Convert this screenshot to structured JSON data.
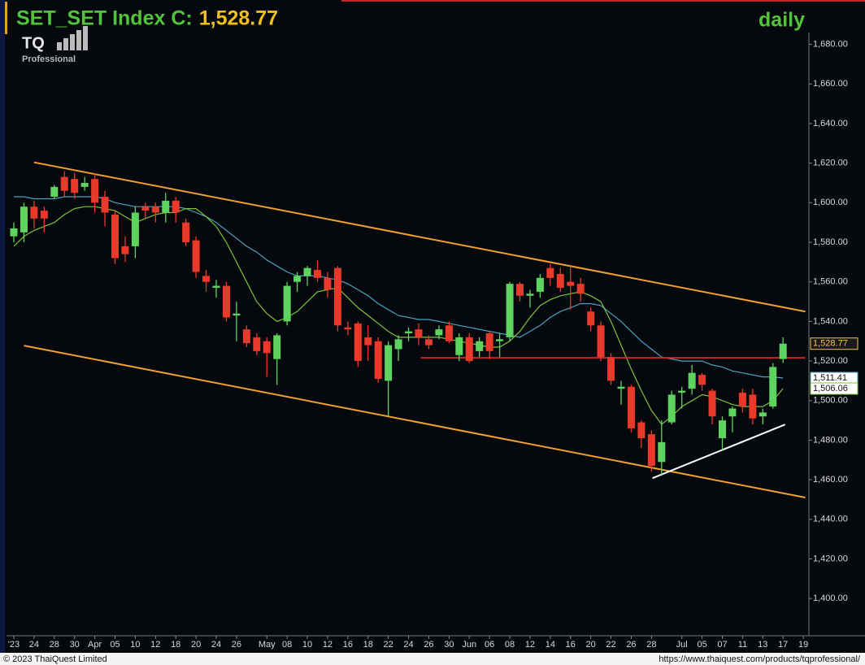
{
  "chart_data": {
    "type": "candlestick",
    "title": "SET_SET Index C:",
    "title_value": "1,528.77",
    "period": "daily",
    "logo": {
      "text": "TQ",
      "subtitle": "Professional"
    },
    "footer": {
      "copyright": "© 2023 ThaiQuest Limited",
      "url": "https://www.thaiquest.com/products/tqprofessional/"
    },
    "grid": false,
    "ylim": [
      1382,
      1686
    ],
    "yticks": [
      {
        "value": 1400,
        "label": "1,400.00"
      },
      {
        "value": 1420,
        "label": "1,420.00"
      },
      {
        "value": 1440,
        "label": "1,440.00"
      },
      {
        "value": 1460,
        "label": "1,460.00"
      },
      {
        "value": 1480,
        "label": "1,480.00"
      },
      {
        "value": 1500,
        "label": "1,500.00"
      },
      {
        "value": 1520,
        "label": "1,520.00"
      },
      {
        "value": 1540,
        "label": "1,540.00"
      },
      {
        "value": 1560,
        "label": "1,560.00"
      },
      {
        "value": 1580,
        "label": "1,580.00"
      },
      {
        "value": 1600,
        "label": "1,600.00"
      },
      {
        "value": 1620,
        "label": "1,620.00"
      },
      {
        "value": 1640,
        "label": "1,640.00"
      },
      {
        "value": 1660,
        "label": "1,660.00"
      },
      {
        "value": 1680,
        "label": "1,680.00"
      }
    ],
    "categories": [
      "'23",
      null,
      "24",
      null,
      "28",
      null,
      "30",
      null,
      "Apr",
      null,
      "05",
      null,
      "10",
      null,
      "12",
      null,
      "18",
      null,
      "20",
      null,
      "24",
      null,
      "26",
      null,
      null,
      "May",
      null,
      "08",
      null,
      "10",
      null,
      "12",
      null,
      "16",
      null,
      "18",
      null,
      "22",
      null,
      "24",
      null,
      "26",
      null,
      "30",
      null,
      "Jun",
      null,
      "06",
      null,
      "08",
      null,
      "12",
      null,
      "14",
      null,
      "16",
      null,
      "20",
      null,
      "22",
      null,
      "26",
      null,
      "28",
      null,
      null,
      "Jul",
      null,
      "05",
      null,
      "07",
      null,
      "11",
      null,
      "13",
      null,
      "17",
      null,
      "19"
    ],
    "candles": {
      "up_color": "#5fd35f",
      "down_color": "#e8392a",
      "open": [
        1583,
        1585,
        1598,
        1596,
        1603,
        1613,
        1612,
        1608,
        1612,
        1603,
        1594,
        1578,
        1578,
        1598,
        1598,
        1595,
        1601,
        1590,
        1581,
        1563,
        1557,
        1558,
        1543,
        1536,
        1532,
        1530,
        1521,
        1540,
        1560,
        1563,
        1566,
        1562,
        1567,
        1537,
        1539,
        1532,
        1530,
        1510,
        1526,
        1534,
        1536,
        1531,
        1533,
        1538,
        1523,
        1532,
        1525,
        1534,
        1530,
        1532,
        1559,
        1553,
        1555,
        1567,
        1564,
        1560,
        1559,
        1545,
        1538,
        1522,
        1506,
        1507,
        1489,
        1483,
        1469,
        1489,
        1504,
        1506,
        1513,
        1505,
        1481,
        1492,
        1504,
        1503,
        1492,
        1497,
        1521,
        null,
        null
      ],
      "high": [
        1590,
        1600,
        1601,
        1598,
        1609,
        1616,
        1615,
        1613,
        1615,
        1606,
        1596,
        1583,
        1598,
        1600,
        1600,
        1605,
        1603,
        1592,
        1583,
        1566,
        1561,
        1560,
        1550,
        1538,
        1534,
        1532,
        1534,
        1560,
        1565,
        1568,
        1571,
        1565,
        1568,
        1540,
        1540,
        1538,
        1532,
        1530,
        1533,
        1537,
        1539,
        1533,
        1538,
        1540,
        1534,
        1534,
        1532,
        1535,
        1534,
        1560,
        1560,
        1556,
        1564,
        1569,
        1567,
        1568,
        1562,
        1547,
        1540,
        1524,
        1510,
        1508,
        1490,
        1485,
        1490,
        1505,
        1507,
        1518,
        1514,
        1506,
        1492,
        1497,
        1506,
        1506,
        1496,
        1519,
        1532,
        null,
        null
      ],
      "low": [
        1580,
        1580,
        1587,
        1585,
        1602,
        1603,
        1602,
        1606,
        1595,
        1588,
        1569,
        1570,
        1572,
        1592,
        1590,
        1590,
        1590,
        1578,
        1562,
        1555,
        1552,
        1540,
        1530,
        1527,
        1523,
        1512,
        1508,
        1538,
        1555,
        1558,
        1560,
        1552,
        1535,
        1533,
        1517,
        1520,
        1509,
        1492,
        1520,
        1530,
        1528,
        1526,
        1531,
        1529,
        1520,
        1519,
        1522,
        1521,
        1522,
        1530,
        1550,
        1547,
        1552,
        1558,
        1555,
        1546,
        1550,
        1535,
        1520,
        1508,
        1498,
        1484,
        1476,
        1464,
        1462,
        1488,
        1496,
        1503,
        1505,
        1488,
        1475,
        1484,
        1494,
        1488,
        1488,
        1496,
        1519,
        null,
        null
      ],
      "close": [
        1587,
        1598,
        1592,
        1592,
        1608,
        1606,
        1605,
        1610,
        1600,
        1595,
        1572,
        1574,
        1595,
        1596,
        1595,
        1601,
        1595,
        1580,
        1565,
        1560,
        1558,
        1542,
        1544,
        1529,
        1525,
        1524,
        1533,
        1558,
        1563,
        1567,
        1562,
        1556,
        1538,
        1536,
        1520,
        1528,
        1511,
        1528,
        1531,
        1535,
        1532,
        1528,
        1536,
        1530,
        1532,
        1520,
        1530,
        1525,
        1531,
        1559,
        1553,
        1554,
        1562,
        1562,
        1557,
        1558,
        1554,
        1538,
        1522,
        1510,
        1507,
        1486,
        1481,
        1467,
        1479,
        1503,
        1505,
        1514,
        1508,
        1492,
        1490,
        1496,
        1497,
        1491,
        1494,
        1517,
        1528.77,
        null,
        null
      ],
      "last_label": {
        "value": 1528.77,
        "label": "1,528.77",
        "color": "#f5c542"
      }
    },
    "series": [
      {
        "color": "#4aa3c0",
        "values": [
          1603,
          1603,
          1602,
          1602,
          1602,
          1603,
          1603,
          1603,
          1603,
          1602,
          1600,
          1599,
          1598,
          1598,
          1598,
          1598,
          1598,
          1597,
          1595,
          1593,
          1590,
          1586,
          1582,
          1578,
          1575,
          1571,
          1568,
          1565,
          1563,
          1563,
          1563,
          1562,
          1561,
          1559,
          1556,
          1553,
          1549,
          1546,
          1543,
          1542,
          1541,
          1541,
          1540,
          1539,
          1538,
          1537,
          1536,
          1535,
          1534,
          1533,
          1532,
          1535,
          1538,
          1542,
          1545,
          1547,
          1549,
          1549,
          1548,
          1544,
          1540,
          1535,
          1530,
          1526,
          1522,
          1521,
          1520,
          1520,
          1520,
          1518,
          1517,
          1515,
          1514,
          1513,
          1512,
          1512,
          1511.41,
          null,
          null
        ],
        "last_label": {
          "value": 1511.41,
          "label": "1,511.41"
        }
      },
      {
        "color": "#7cc53b",
        "values": [
          1578,
          1583,
          1586,
          1588,
          1590,
          1594,
          1597,
          1598,
          1598,
          1597,
          1596,
          1593,
          1590,
          1592,
          1594,
          1595,
          1595,
          1597,
          1597,
          1593,
          1588,
          1580,
          1570,
          1560,
          1550,
          1544,
          1540,
          1542,
          1545,
          1550,
          1555,
          1556,
          1557,
          1552,
          1547,
          1543,
          1539,
          1535,
          1532,
          1532,
          1532,
          1532,
          1532,
          1531,
          1530,
          1529,
          1528,
          1527,
          1527,
          1530,
          1535,
          1542,
          1548,
          1551,
          1553,
          1554,
          1555,
          1553,
          1550,
          1540,
          1528,
          1516,
          1505,
          1495,
          1488,
          1492,
          1497,
          1500,
          1503,
          1502,
          1500,
          1498,
          1497,
          1497,
          1497,
          1500,
          1506.06,
          null,
          null
        ],
        "last_label": {
          "value": 1506.06,
          "label": "1,506.06"
        }
      }
    ],
    "lines": [
      {
        "color": "#f0a030",
        "x": [
          2,
          78.2
        ],
        "values": [
          1620.4,
          1545
        ]
      },
      {
        "color": "#f0a030",
        "x": [
          1,
          78.2
        ],
        "values": [
          1527.8,
          1451
        ]
      },
      {
        "color": "#c0282a",
        "x": [
          40.2,
          78.2
        ],
        "values": [
          1521.6,
          1521.6
        ]
      },
      {
        "color": "#ffffff",
        "x": [
          63.1,
          76.2
        ],
        "values": [
          1460.8,
          1487.9
        ]
      }
    ]
  }
}
